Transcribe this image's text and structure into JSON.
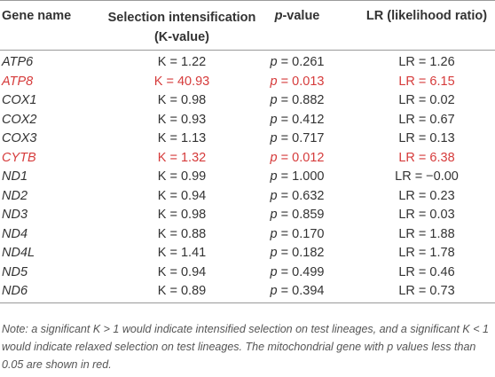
{
  "table": {
    "headers": [
      "Gene name",
      "Selection intensification (K-value)",
      "p-value",
      "LR (likelihood ratio)"
    ],
    "highlight_color": "#d63b3b",
    "rows": [
      {
        "cells": [
          "ATP6",
          "K = 1.22",
          "p = 0.261",
          "LR = 1.26"
        ],
        "highlight": false
      },
      {
        "cells": [
          "ATP8",
          "K = 40.93",
          "p = 0.013",
          "LR = 6.15"
        ],
        "highlight": true
      },
      {
        "cells": [
          "COX1",
          "K = 0.98",
          "p = 0.882",
          "LR = 0.02"
        ],
        "highlight": false
      },
      {
        "cells": [
          "COX2",
          "K = 0.93",
          "p = 0.412",
          "LR = 0.67"
        ],
        "highlight": false
      },
      {
        "cells": [
          "COX3",
          "K = 1.13",
          "p = 0.717",
          "LR = 0.13"
        ],
        "highlight": false
      },
      {
        "cells": [
          "CYTB",
          "K = 1.32",
          "p = 0.012",
          "LR = 6.38"
        ],
        "highlight": true
      },
      {
        "cells": [
          "ND1",
          "K = 0.99",
          "p = 1.000",
          "LR = −0.00"
        ],
        "highlight": false
      },
      {
        "cells": [
          "ND2",
          "K = 0.94",
          "p = 0.632",
          "LR = 0.23"
        ],
        "highlight": false
      },
      {
        "cells": [
          "ND3",
          "K = 0.98",
          "p = 0.859",
          "LR = 0.03"
        ],
        "highlight": false
      },
      {
        "cells": [
          "ND4",
          "K = 0.88",
          "p = 0.170",
          "LR = 1.88"
        ],
        "highlight": false
      },
      {
        "cells": [
          "ND4L",
          "K = 1.41",
          "p = 0.182",
          "LR = 1.78"
        ],
        "highlight": false
      },
      {
        "cells": [
          "ND5",
          "K = 0.94",
          "p = 0.499",
          "LR = 0.46"
        ],
        "highlight": false
      },
      {
        "cells": [
          "ND6",
          "K = 0.89",
          "p = 0.394",
          "LR = 0.73"
        ],
        "highlight": false
      }
    ],
    "note": "Note: a significant K > 1 would indicate intensified selection on test lineages, and a significant K < 1 would indicate relaxed selection on test lineages. The mitochondrial gene with p values less than 0.05 are shown in red."
  }
}
